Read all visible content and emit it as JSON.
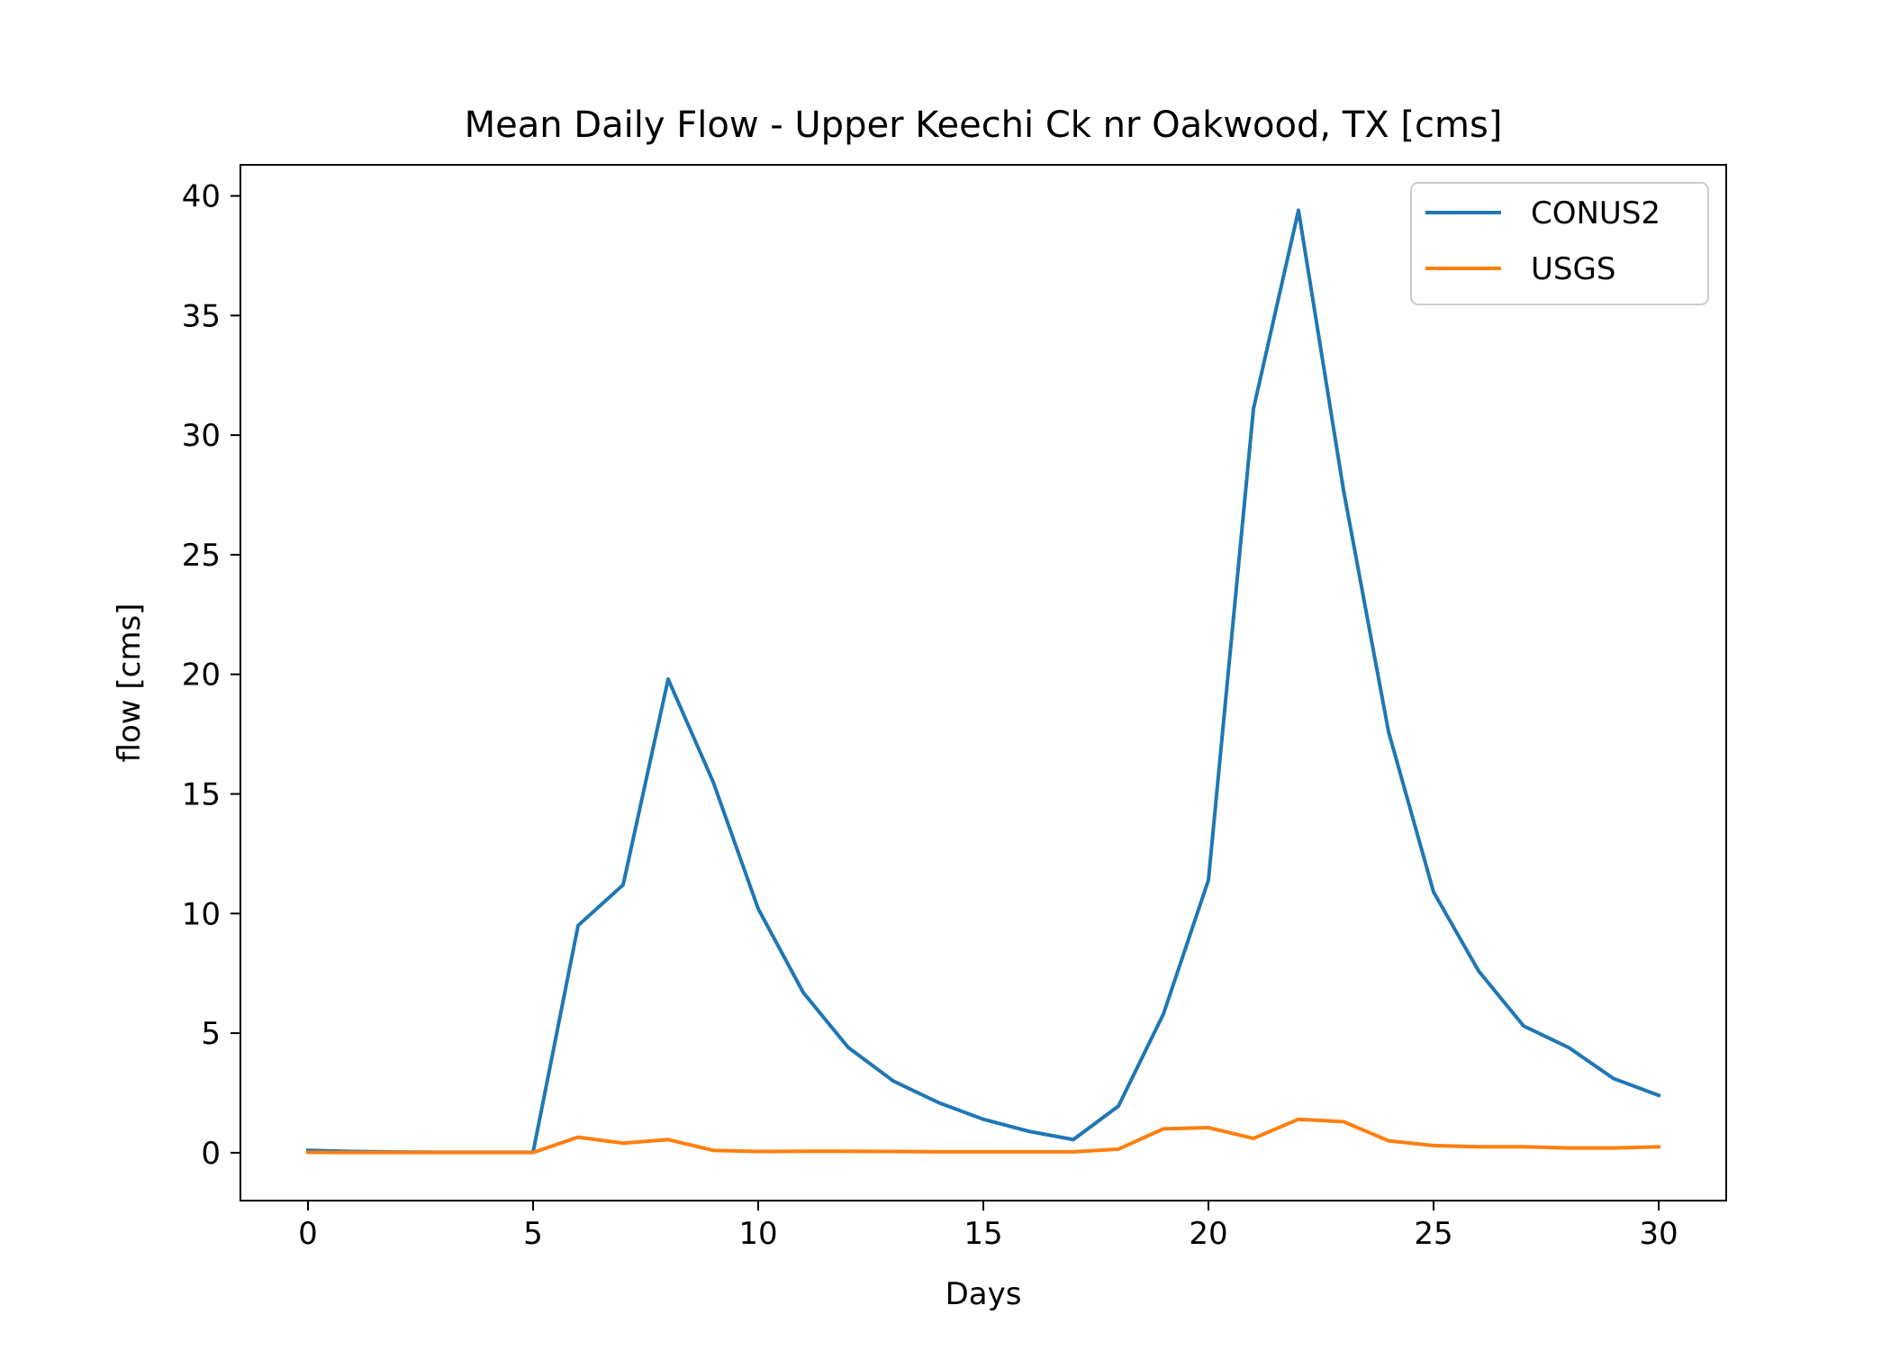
{
  "chart_data": {
    "type": "line",
    "title": "Mean Daily Flow - Upper Keechi Ck nr Oakwood, TX [cms]",
    "xlabel": "Days",
    "ylabel": "flow [cms]",
    "xlim": [
      -1.5,
      31.5
    ],
    "ylim": [
      -2,
      41.3
    ],
    "xticks": [
      0,
      5,
      10,
      15,
      20,
      25,
      30
    ],
    "yticks": [
      0,
      5,
      10,
      15,
      20,
      25,
      30,
      35,
      40
    ],
    "grid": false,
    "legend_position": "top-right",
    "x": [
      0,
      1,
      2,
      3,
      4,
      5,
      6,
      7,
      8,
      9,
      10,
      11,
      12,
      13,
      14,
      15,
      16,
      17,
      18,
      19,
      20,
      21,
      22,
      23,
      24,
      25,
      26,
      27,
      28,
      29,
      30
    ],
    "series": [
      {
        "name": "CONUS2",
        "color": "#1f77b4",
        "values": [
          0.1,
          0.05,
          0.03,
          0.02,
          0.02,
          0.02,
          9.5,
          11.2,
          19.8,
          15.5,
          10.2,
          6.7,
          4.4,
          3.0,
          2.1,
          1.4,
          0.9,
          0.55,
          1.95,
          5.8,
          11.4,
          31.1,
          39.4,
          27.7,
          17.6,
          10.9,
          7.6,
          5.3,
          4.4,
          3.1,
          2.4
        ]
      },
      {
        "name": "USGS",
        "color": "#ff7f0e",
        "values": [
          0.02,
          0.01,
          0.01,
          0.01,
          0.01,
          0.01,
          0.65,
          0.4,
          0.55,
          0.1,
          0.05,
          0.06,
          0.06,
          0.05,
          0.04,
          0.04,
          0.04,
          0.04,
          0.15,
          1.0,
          1.05,
          0.6,
          1.4,
          1.3,
          0.5,
          0.3,
          0.25,
          0.25,
          0.2,
          0.2,
          0.25
        ]
      }
    ]
  }
}
